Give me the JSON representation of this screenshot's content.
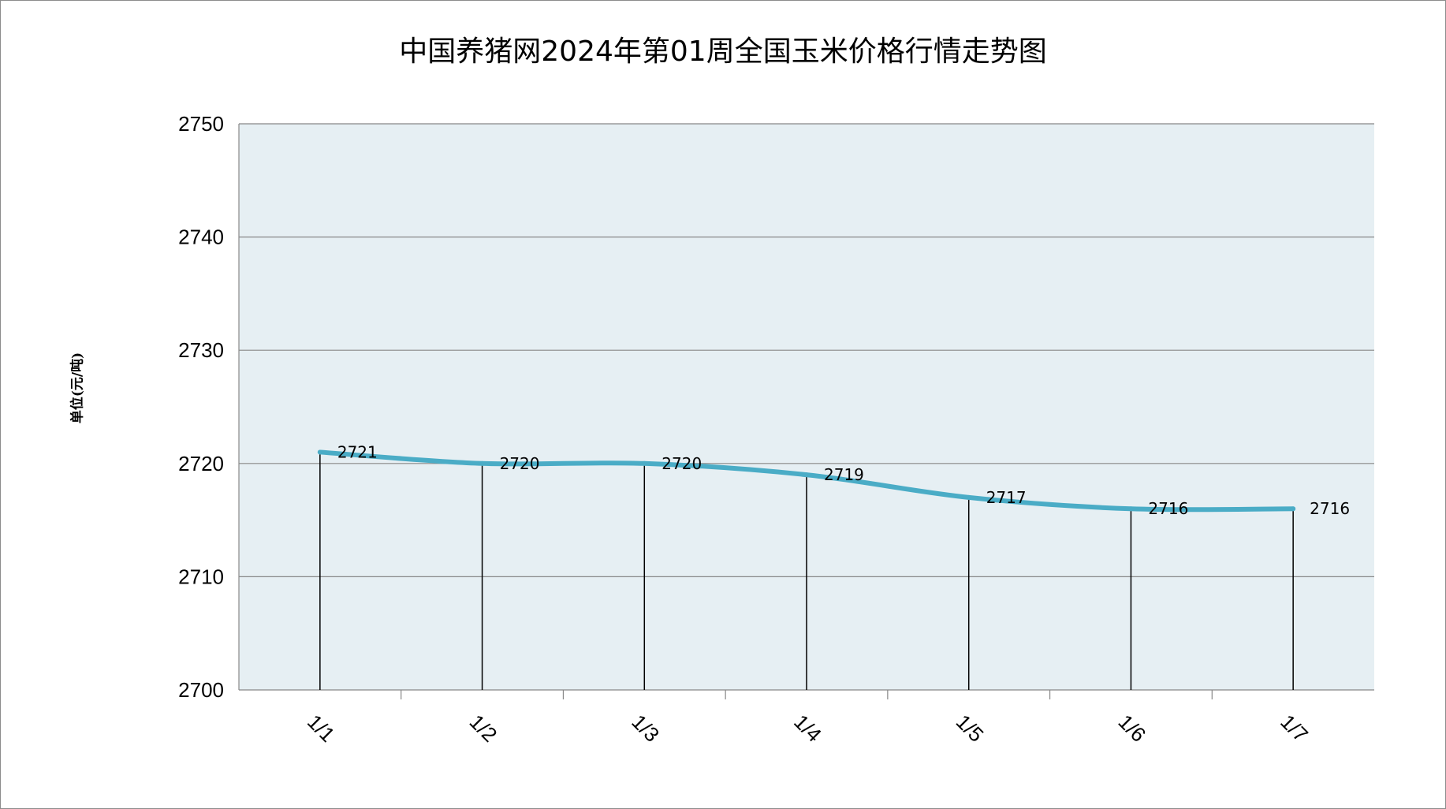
{
  "chart_data": {
    "type": "line",
    "title": "中国养猪网2024年第01周全国玉米价格行情走势图",
    "ylabel": "单位(元/吨)",
    "xlabel": "",
    "categories": [
      "1/1",
      "1/2",
      "1/3",
      "1/4",
      "1/5",
      "1/6",
      "1/7"
    ],
    "values": [
      2721,
      2720,
      2720,
      2719,
      2717,
      2716,
      2716
    ],
    "data_labels": [
      "2721",
      "2720",
      "2720",
      "2719",
      "2717",
      "2716",
      "2716"
    ],
    "ylim": [
      2700,
      2750
    ],
    "yticks": [
      2700,
      2710,
      2720,
      2730,
      2740,
      2750
    ],
    "ytick_labels": [
      "2700",
      "2710",
      "2720",
      "2730",
      "2740",
      "2750"
    ],
    "grid": true,
    "legend": "none",
    "drop_lines": true,
    "colors": {
      "line": "#4aacc6",
      "plot_background": "#e6eff3",
      "grid": "#888888",
      "axis": "#888888",
      "drop_line": "#000000"
    }
  }
}
